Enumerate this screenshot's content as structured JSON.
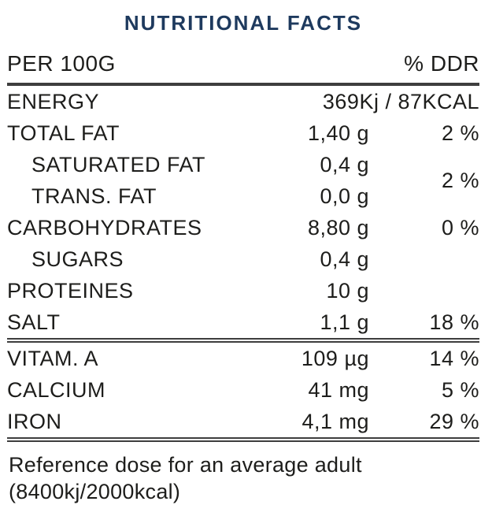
{
  "title": "NUTRITIONAL FACTS",
  "colors": {
    "title_navy": "#1e3a5e",
    "body_text": "#1d1d1b",
    "rule_dark": "#3e3e3e"
  },
  "table": {
    "header": {
      "left": "PER 100G",
      "right": "% DDR"
    },
    "rows": [
      {
        "label": "ENERGY",
        "value": "369Kj / 87KCAL",
        "ddr": ""
      },
      {
        "label": "TOTAL FAT",
        "value": "1,40 g",
        "ddr": "2 %"
      },
      {
        "label": "SATURATED FAT",
        "value": "0,4 g",
        "ddr": "2 %"
      },
      {
        "label": "TRANS. FAT",
        "value": "0,0 g",
        "ddr": ""
      },
      {
        "label": "CARBOHYDRATES",
        "value": "8,80 g",
        "ddr": "0 %"
      },
      {
        "label": "SUGARS",
        "value": "0,4 g",
        "ddr": ""
      },
      {
        "label": "PROTEINES",
        "value": "10 g",
        "ddr": ""
      },
      {
        "label": "SALT",
        "value": "1,1 g",
        "ddr": "18 %"
      },
      {
        "label": "VITAM. A",
        "value": "109 µg",
        "ddr": "14 %"
      },
      {
        "label": "CALCIUM",
        "value": "41 mg",
        "ddr": "5 %"
      },
      {
        "label": "IRON",
        "value": "4,1 mg",
        "ddr": "29 %"
      }
    ],
    "footnote": "Reference dose for an average adult (8400kj/2000kcal)"
  }
}
